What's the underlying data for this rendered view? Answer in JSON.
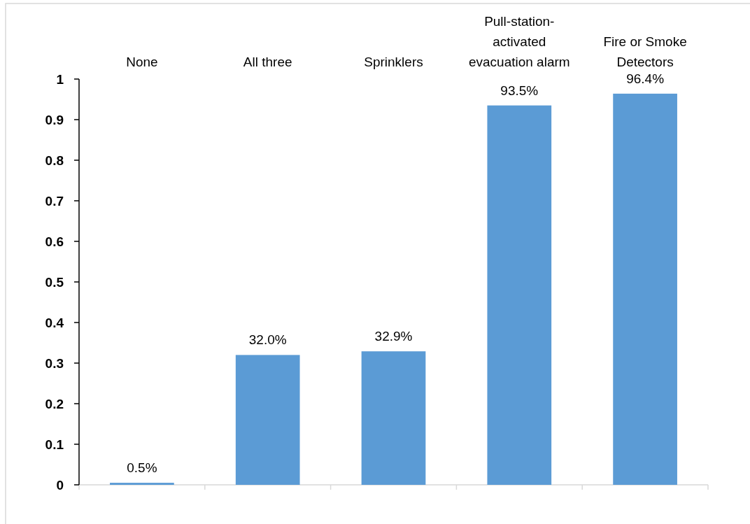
{
  "chart_data": {
    "type": "bar",
    "categories": [
      "None",
      "All three",
      "Sprinklers",
      "Pull-station-activated evacuation alarm",
      "Fire or Smoke Detectors"
    ],
    "values": [
      0.005,
      0.32,
      0.329,
      0.935,
      0.964
    ],
    "value_labels": [
      "0.5%",
      "32.0%",
      "32.9%",
      "93.5%",
      "96.4%"
    ],
    "color": "#5b9bd5",
    "ylim": [
      0,
      1
    ],
    "yticks": [
      0,
      0.1,
      0.2,
      0.3,
      0.4,
      0.5,
      0.6,
      0.7,
      0.8,
      0.9,
      1
    ]
  }
}
